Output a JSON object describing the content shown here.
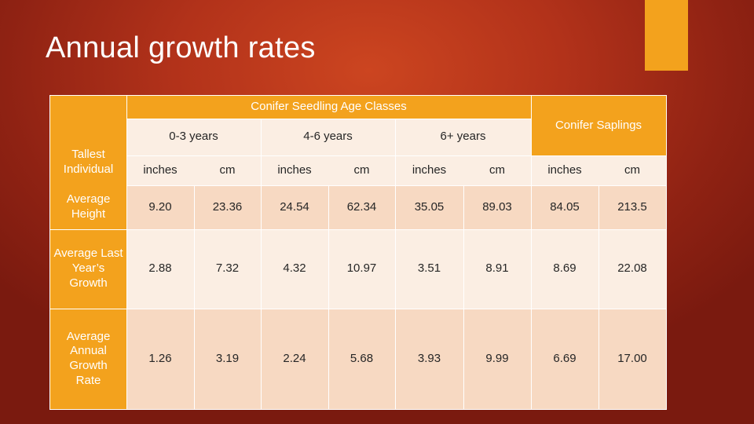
{
  "slide": {
    "title": "Annual growth rates"
  },
  "table": {
    "group_header": "Conifer Seedling Age Classes",
    "corner_label": "Tallest Individual",
    "age_classes": [
      "0-3 years",
      "4-6 years",
      "6+ years"
    ],
    "saplings_header": "Conifer Saplings",
    "units": [
      "inches",
      "cm",
      "inches",
      "cm",
      "inches",
      "cm",
      "inches",
      "cm"
    ],
    "rows": [
      {
        "label": "Average Height",
        "values": [
          "9.20",
          "23.36",
          "24.54",
          "62.34",
          "35.05",
          "89.03",
          "84.05",
          "213.5"
        ]
      },
      {
        "label": "Average Last Year’s Growth",
        "values": [
          "2.88",
          "7.32",
          "4.32",
          "10.97",
          "3.51",
          "8.91",
          "8.69",
          "22.08"
        ]
      },
      {
        "label": "Average Annual Growth Rate",
        "values": [
          "1.26",
          "3.19",
          "2.24",
          "5.68",
          "3.93",
          "9.99",
          "6.69",
          "17.00"
        ]
      }
    ]
  },
  "colors": {
    "accent": "#f3a21d",
    "row_shade": "#f7d9c2",
    "row_light": "#fbeee3",
    "background": "#b2321a"
  }
}
